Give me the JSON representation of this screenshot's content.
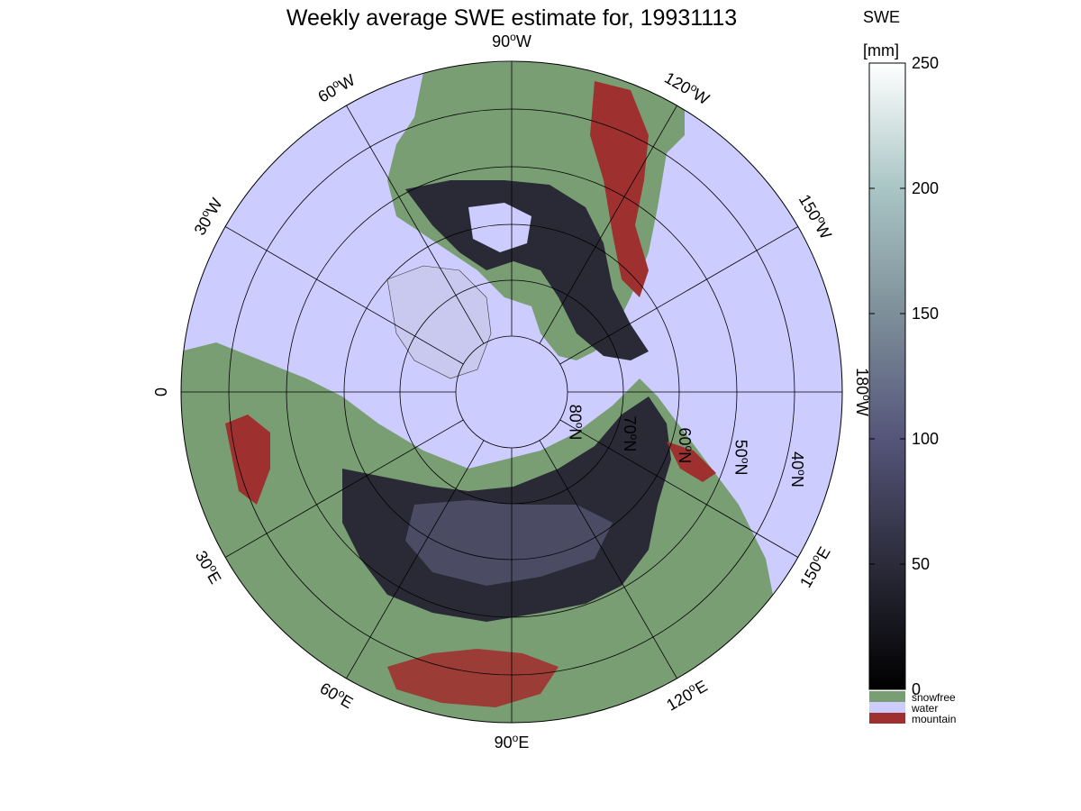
{
  "title": "Weekly average SWE estimate for, 19931113",
  "colorbar": {
    "label_line1": "SWE",
    "label_line2": "[mm]",
    "ticks": [
      "0",
      "50",
      "100",
      "150",
      "200",
      "250"
    ],
    "range": [
      0,
      250
    ],
    "categories": [
      {
        "label": "snowfree",
        "color": "#7a9e74"
      },
      {
        "label": "water",
        "color": "#ccccff"
      },
      {
        "label": "mountain",
        "color": "#9e3130"
      }
    ]
  },
  "map": {
    "projection": "north polar stereographic",
    "ocean_color": "#ccccff",
    "land_color": "#7a9e74",
    "mountain_color": "#9e3130",
    "snow_dark_color": "#2a2a36",
    "snow_mid_color": "#5a5a78",
    "longitude_labels": [
      {
        "text": "90",
        "unit": "W"
      },
      {
        "text": "120",
        "unit": "W"
      },
      {
        "text": "150",
        "unit": "W"
      },
      {
        "text": "180",
        "unit": "W"
      },
      {
        "text": "150",
        "unit": "E"
      },
      {
        "text": "120",
        "unit": "E"
      },
      {
        "text": "90",
        "unit": "E"
      },
      {
        "text": "60",
        "unit": "E"
      },
      {
        "text": "30",
        "unit": "E"
      },
      {
        "text": "0",
        "unit": ""
      },
      {
        "text": "30",
        "unit": "W"
      },
      {
        "text": "60",
        "unit": "W"
      }
    ],
    "latitude_labels": [
      "80",
      "70",
      "60",
      "50",
      "40"
    ]
  }
}
